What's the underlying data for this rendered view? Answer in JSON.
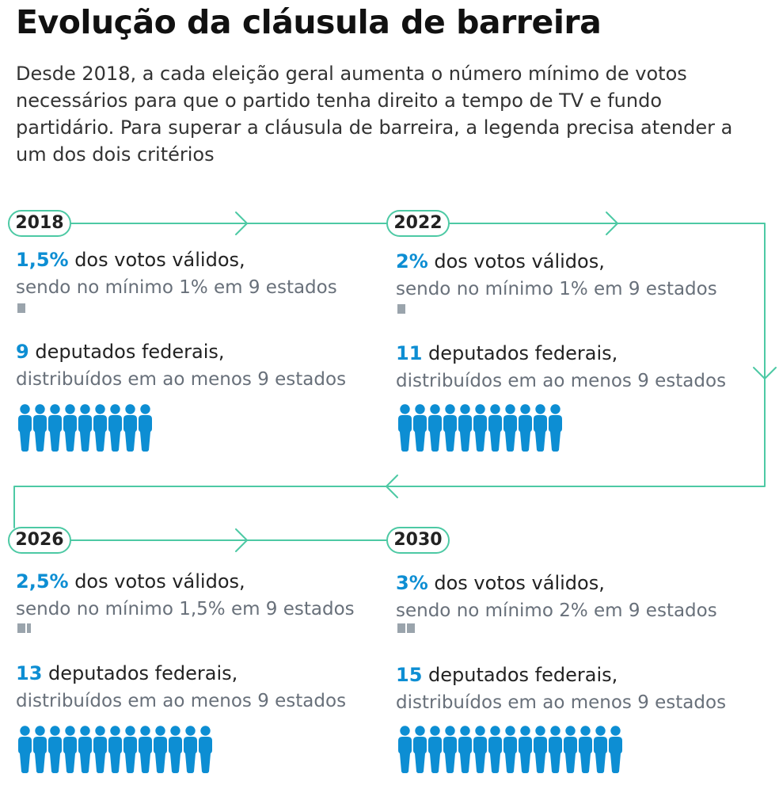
{
  "title": "Evolução da cláusula de barreira",
  "intro": "Desde 2018, a cada eleição geral aumenta o número mínimo de votos necessários para que o partido tenha direito a tempo de TV e fundo partidário. Para superar a cláusula de barreira, a legenda precisa atender a um dos dois critérios",
  "colors": {
    "accent": "#0d8ed3",
    "line": "#4dc9a4",
    "muted": "#68707a",
    "bar": "#9aa4ac"
  },
  "icons": {
    "person": "person-icon",
    "bar": "bar-block-icon",
    "arrow": "chevron-right-icon"
  },
  "periods": [
    {
      "year": "2018",
      "vote_pct": "1,5%",
      "vote_text": " dos votos válidos,",
      "vote_sub": "sendo no mínimo 1% em 9 estados",
      "state_pct": 1,
      "deputies": "9",
      "deputies_text": " deputados federais,",
      "deputies_sub": "distribuídos em ao menos 9 estados",
      "deputies_count": 9
    },
    {
      "year": "2022",
      "vote_pct": "2%",
      "vote_text": " dos votos válidos,",
      "vote_sub": "sendo no mínimo 1% em 9 estados",
      "state_pct": 1,
      "deputies": "11",
      "deputies_text": " deputados federais,",
      "deputies_sub": "distribuídos em ao menos 9 estados",
      "deputies_count": 11
    },
    {
      "year": "2026",
      "vote_pct": "2,5%",
      "vote_text": " dos votos válidos,",
      "vote_sub": "sendo no mínimo 1,5% em 9 estados",
      "state_pct": 1.5,
      "deputies": "13",
      "deputies_text": " deputados federais,",
      "deputies_sub": "distribuídos em ao menos 9 estados",
      "deputies_count": 13
    },
    {
      "year": "2030",
      "vote_pct": "3%",
      "vote_text": " dos votos válidos,",
      "vote_sub": "sendo no mínimo 2% em 9 estados",
      "state_pct": 2,
      "deputies": "15",
      "deputies_text": " deputados federais,",
      "deputies_sub": "distribuídos em ao menos 9 estados",
      "deputies_count": 15
    }
  ]
}
